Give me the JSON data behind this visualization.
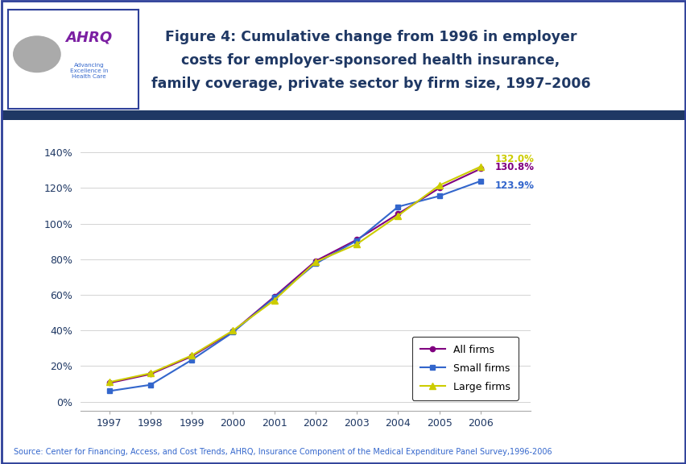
{
  "years": [
    1997,
    1998,
    1999,
    2000,
    2001,
    2002,
    2003,
    2004,
    2005,
    2006
  ],
  "all_firms": [
    10.5,
    15.5,
    25.5,
    39.5,
    59.0,
    79.0,
    91.0,
    105.5,
    120.0,
    130.8
  ],
  "small_firms": [
    6.0,
    9.5,
    23.5,
    39.0,
    58.5,
    77.5,
    90.5,
    109.5,
    115.5,
    123.9
  ],
  "large_firms": [
    11.0,
    16.0,
    26.0,
    40.0,
    57.0,
    78.5,
    88.5,
    104.5,
    121.5,
    132.0
  ],
  "all_firms_color": "#800080",
  "small_firms_color": "#3366CC",
  "large_firms_color": "#CCCC00",
  "title_line1": "Figure 4: Cumulative change from 1996 in employer",
  "title_line2": "costs for employer-sponsored health insurance,",
  "title_line3": "family coverage, private sector by firm size, 1997–2006",
  "title_color": "#1F3864",
  "ylabel_ticks": [
    "0%",
    "20%",
    "40%",
    "60%",
    "80%",
    "100%",
    "120%",
    "140%"
  ],
  "ytick_vals": [
    0,
    20,
    40,
    60,
    80,
    100,
    120,
    140
  ],
  "ylim": [
    -5,
    150
  ],
  "source_text": "Source: Center for Financing, Access, and Cost Trends, AHRQ, Insurance Component of the Medical Expenditure Panel Survey,1996-2006",
  "end_label_large": "132.0%",
  "end_label_all": "130.8%",
  "end_label_small": "123.9%",
  "end_color_large": "#CCCC00",
  "end_color_all": "#800080",
  "end_color_small": "#3366CC",
  "header_bar_color": "#1F3864",
  "background_color": "#FFFFFF",
  "border_color": "#2E4099",
  "legend_labels": [
    "All firms",
    "Small firms",
    "Large firms"
  ],
  "source_color": "#3366CC"
}
